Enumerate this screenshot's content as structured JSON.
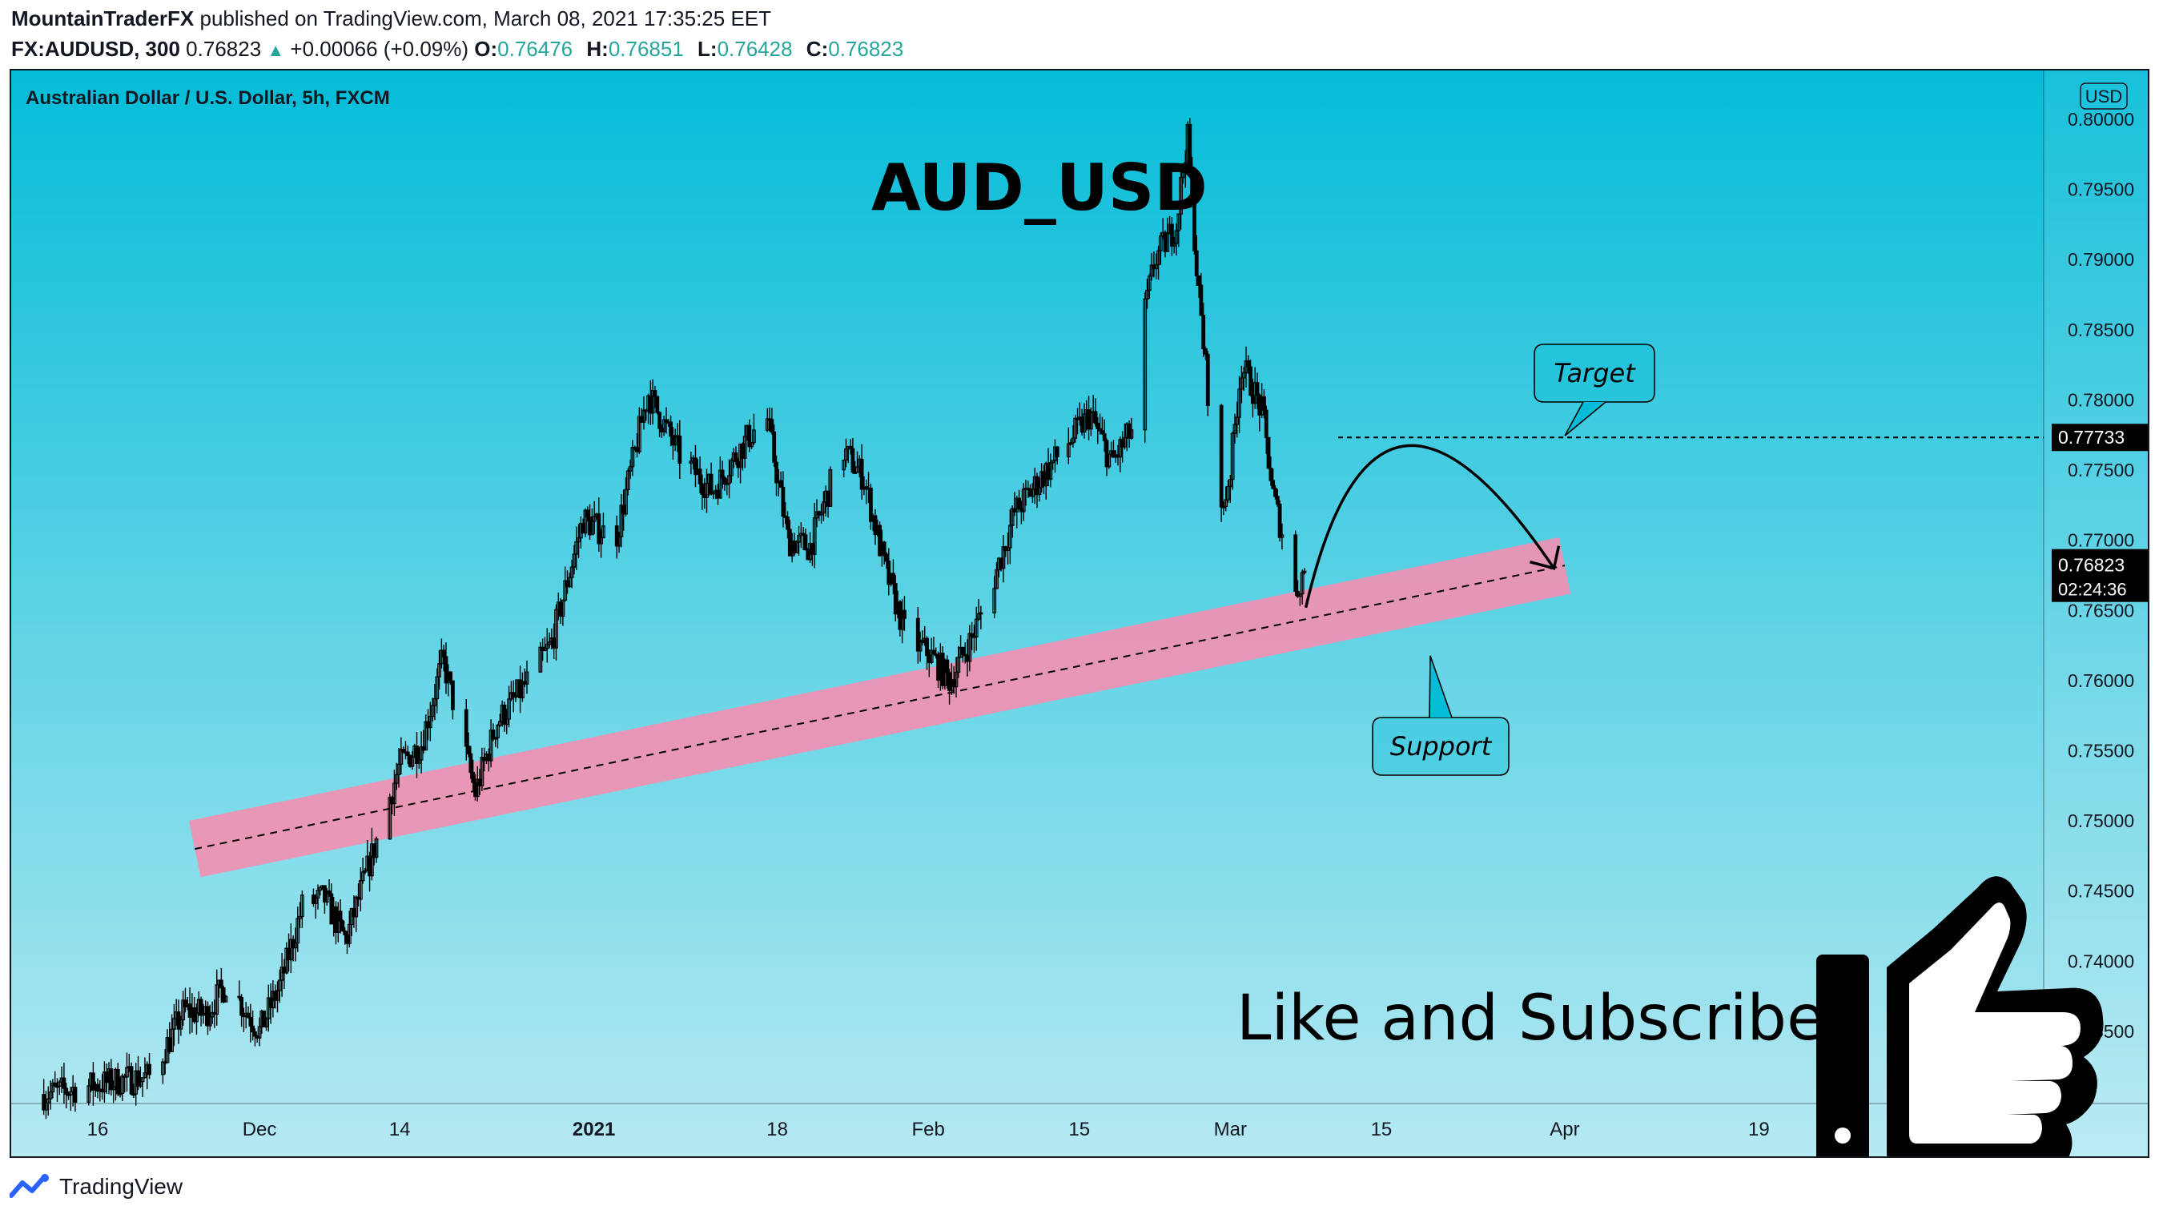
{
  "header": {
    "author": "MountainTraderFX",
    "published_text": "published on TradingView.com, March 08, 2021 17:35:25 EET",
    "symbol": "FX:AUDUSD, 300",
    "last": "0.76823",
    "change_arrow": "▲",
    "change": "+0.00066 (+0.09%)",
    "ohlc": [
      {
        "key": "O:",
        "value": "0.76476"
      },
      {
        "key": "H:",
        "value": "0.76851"
      },
      {
        "key": "L:",
        "value": "0.76428"
      },
      {
        "key": "C:",
        "value": "0.76823"
      }
    ]
  },
  "footer": {
    "brand": "TradingView"
  },
  "colors": {
    "bg_top": "#05bcd8",
    "bg_bottom": "#b6e9f2",
    "channel": "#f48fb1",
    "candles": "#000000",
    "ohlc_green": "#26a69a",
    "axis_label_dark": "#000000"
  },
  "chart_data": {
    "type": "candlestick",
    "title": "AUD_USD",
    "subtitle": "Australian Dollar / U.S. Dollar, 5h, FXCM",
    "currency": "USD",
    "ylim": [
      0.731,
      0.8012
    ],
    "y_ticks": [
      "0.80000",
      "0.79500",
      "0.79000",
      "0.78500",
      "0.78000",
      "0.77500",
      "0.77000",
      "0.76500",
      "0.76000",
      "0.75500",
      "0.75000",
      "0.74500",
      "0.74000",
      "0.73500"
    ],
    "x_ticks": [
      {
        "label": "16",
        "date": "2020-11-16"
      },
      {
        "label": "Dec",
        "date": "2020-12-01"
      },
      {
        "label": "14",
        "date": "2020-12-14"
      },
      {
        "label": "2021",
        "date": "2021-01-01",
        "bold": true
      },
      {
        "label": "18",
        "date": "2021-01-18"
      },
      {
        "label": "Feb",
        "date": "2021-02-01"
      },
      {
        "label": "15",
        "date": "2021-02-15"
      },
      {
        "label": "Mar",
        "date": "2021-03-01"
      },
      {
        "label": "15",
        "date": "2021-03-15"
      },
      {
        "label": "Apr",
        "date": "2021-04-01"
      },
      {
        "label": "19",
        "date": "2021-04-19"
      }
    ],
    "price_path": [
      {
        "date": "2020-11-11",
        "price": 0.7305
      },
      {
        "date": "2020-11-18",
        "price": 0.7315
      },
      {
        "date": "2020-11-21",
        "price": 0.7318
      },
      {
        "date": "2020-11-24",
        "price": 0.7365
      },
      {
        "date": "2020-11-26",
        "price": 0.7362
      },
      {
        "date": "2020-11-28",
        "price": 0.7385
      },
      {
        "date": "2020-12-01",
        "price": 0.735
      },
      {
        "date": "2020-12-03",
        "price": 0.7385
      },
      {
        "date": "2020-12-05",
        "price": 0.744
      },
      {
        "date": "2020-12-07",
        "price": 0.7445
      },
      {
        "date": "2020-12-09",
        "price": 0.7415
      },
      {
        "date": "2020-12-11",
        "price": 0.7465
      },
      {
        "date": "2020-12-14",
        "price": 0.754
      },
      {
        "date": "2020-12-16",
        "price": 0.7555
      },
      {
        "date": "2020-12-18",
        "price": 0.7615
      },
      {
        "date": "2020-12-21",
        "price": 0.752
      },
      {
        "date": "2020-12-23",
        "price": 0.757
      },
      {
        "date": "2020-12-25",
        "price": 0.759
      },
      {
        "date": "2020-12-28",
        "price": 0.7625
      },
      {
        "date": "2020-12-31",
        "price": 0.7715
      },
      {
        "date": "2021-01-03",
        "price": 0.77
      },
      {
        "date": "2021-01-06",
        "price": 0.7805
      },
      {
        "date": "2021-01-09",
        "price": 0.776
      },
      {
        "date": "2021-01-12",
        "price": 0.7735
      },
      {
        "date": "2021-01-15",
        "price": 0.777
      },
      {
        "date": "2021-01-17",
        "price": 0.779
      },
      {
        "date": "2021-01-19",
        "price": 0.77
      },
      {
        "date": "2021-01-21",
        "price": 0.7695
      },
      {
        "date": "2021-01-24",
        "price": 0.7765
      },
      {
        "date": "2021-01-26",
        "price": 0.7745
      },
      {
        "date": "2021-01-28",
        "price": 0.768
      },
      {
        "date": "2021-01-30",
        "price": 0.763
      },
      {
        "date": "2021-02-01",
        "price": 0.762
      },
      {
        "date": "2021-02-03",
        "price": 0.76
      },
      {
        "date": "2021-02-05",
        "price": 0.763
      },
      {
        "date": "2021-02-07",
        "price": 0.767
      },
      {
        "date": "2021-02-09",
        "price": 0.772
      },
      {
        "date": "2021-02-11",
        "price": 0.774
      },
      {
        "date": "2021-02-13",
        "price": 0.776
      },
      {
        "date": "2021-02-16",
        "price": 0.779
      },
      {
        "date": "2021-02-18",
        "price": 0.7755
      },
      {
        "date": "2021-02-20",
        "price": 0.778
      },
      {
        "date": "2021-02-21",
        "price": 0.786
      },
      {
        "date": "2021-02-22",
        "price": 0.79
      },
      {
        "date": "2021-02-24",
        "price": 0.7925
      },
      {
        "date": "2021-02-25",
        "price": 0.799
      },
      {
        "date": "2021-02-26",
        "price": 0.788
      },
      {
        "date": "2021-02-27",
        "price": 0.78
      },
      {
        "date": "2021-02-28",
        "price": 0.771
      },
      {
        "date": "2021-03-01",
        "price": 0.775
      },
      {
        "date": "2021-03-02",
        "price": 0.7825
      },
      {
        "date": "2021-03-03",
        "price": 0.781
      },
      {
        "date": "2021-03-04",
        "price": 0.779
      },
      {
        "date": "2021-03-05",
        "price": 0.773
      },
      {
        "date": "2021-03-06",
        "price": 0.77
      },
      {
        "date": "2021-03-07",
        "price": 0.766
      },
      {
        "date": "2021-03-08",
        "price": 0.76823
      }
    ],
    "channel": {
      "start": {
        "date": "2020-11-25",
        "price": 0.748
      },
      "end": {
        "date": "2021-04-01",
        "price": 0.7682
      },
      "label": "support trend channel"
    },
    "target_line": {
      "price": 0.77733,
      "from_date": "2021-03-11",
      "label": "0.77733"
    },
    "projection": [
      {
        "date": "2021-03-08",
        "price": 0.7652
      },
      {
        "date": "2021-03-17",
        "price": 0.7767
      },
      {
        "date": "2021-03-31",
        "price": 0.768
      }
    ],
    "callouts": [
      {
        "text": "Target"
      },
      {
        "text": "Support"
      }
    ],
    "price_labels": {
      "current_price": "0.76823",
      "countdown": "02:24:36",
      "target_price": "0.77733"
    },
    "banner": "Like and Subscribe"
  }
}
